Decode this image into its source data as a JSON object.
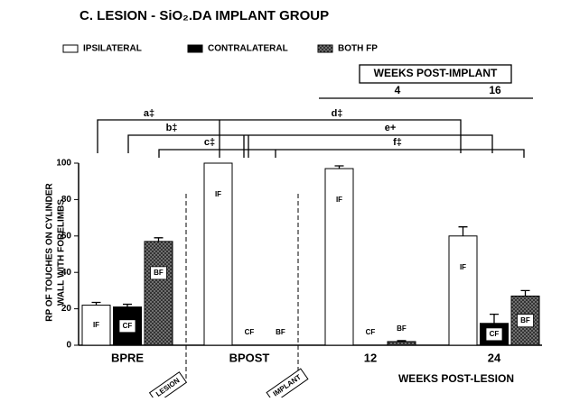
{
  "chart_data": {
    "type": "bar",
    "title": "C. LESION - SiO₂.DA IMPLANT GROUP",
    "y_label": [
      "RP OF TOUCHES ON CYLINDER",
      "WALL WITH FORELIMBS"
    ],
    "x_label": "WEEKS POST-LESION",
    "categories": [
      "BPRE",
      "BPOST",
      "12",
      "24"
    ],
    "ylim": [
      0,
      100
    ],
    "yticks": [
      0,
      20,
      40,
      60,
      80,
      100
    ],
    "series": [
      {
        "name": "IPSILATERAL",
        "color": "#ffffff",
        "label": "IF",
        "values": [
          22,
          100,
          97,
          60
        ],
        "errors": [
          1.5,
          0,
          1.5,
          5
        ]
      },
      {
        "name": "CONTRALATERAL",
        "color": "#000000",
        "label": "CF",
        "values": [
          21,
          0,
          0,
          12
        ],
        "errors": [
          1.5,
          0,
          0,
          5
        ]
      },
      {
        "name": "BOTH FP",
        "color": "#333333",
        "hatch": true,
        "label": "BF",
        "values": [
          57,
          0,
          2,
          27
        ],
        "errors": [
          2,
          0,
          0.5,
          3
        ]
      }
    ],
    "annotations": {
      "lesion": "LESION",
      "implant": "IMPLANT",
      "weeks_post_implant": "WEEKS POST-IMPLANT",
      "week_4": "4",
      "week_16": "16",
      "a": "a‡",
      "b": "b‡",
      "c": "c‡",
      "d": "d‡",
      "e": "e+",
      "f": "f‡"
    }
  }
}
